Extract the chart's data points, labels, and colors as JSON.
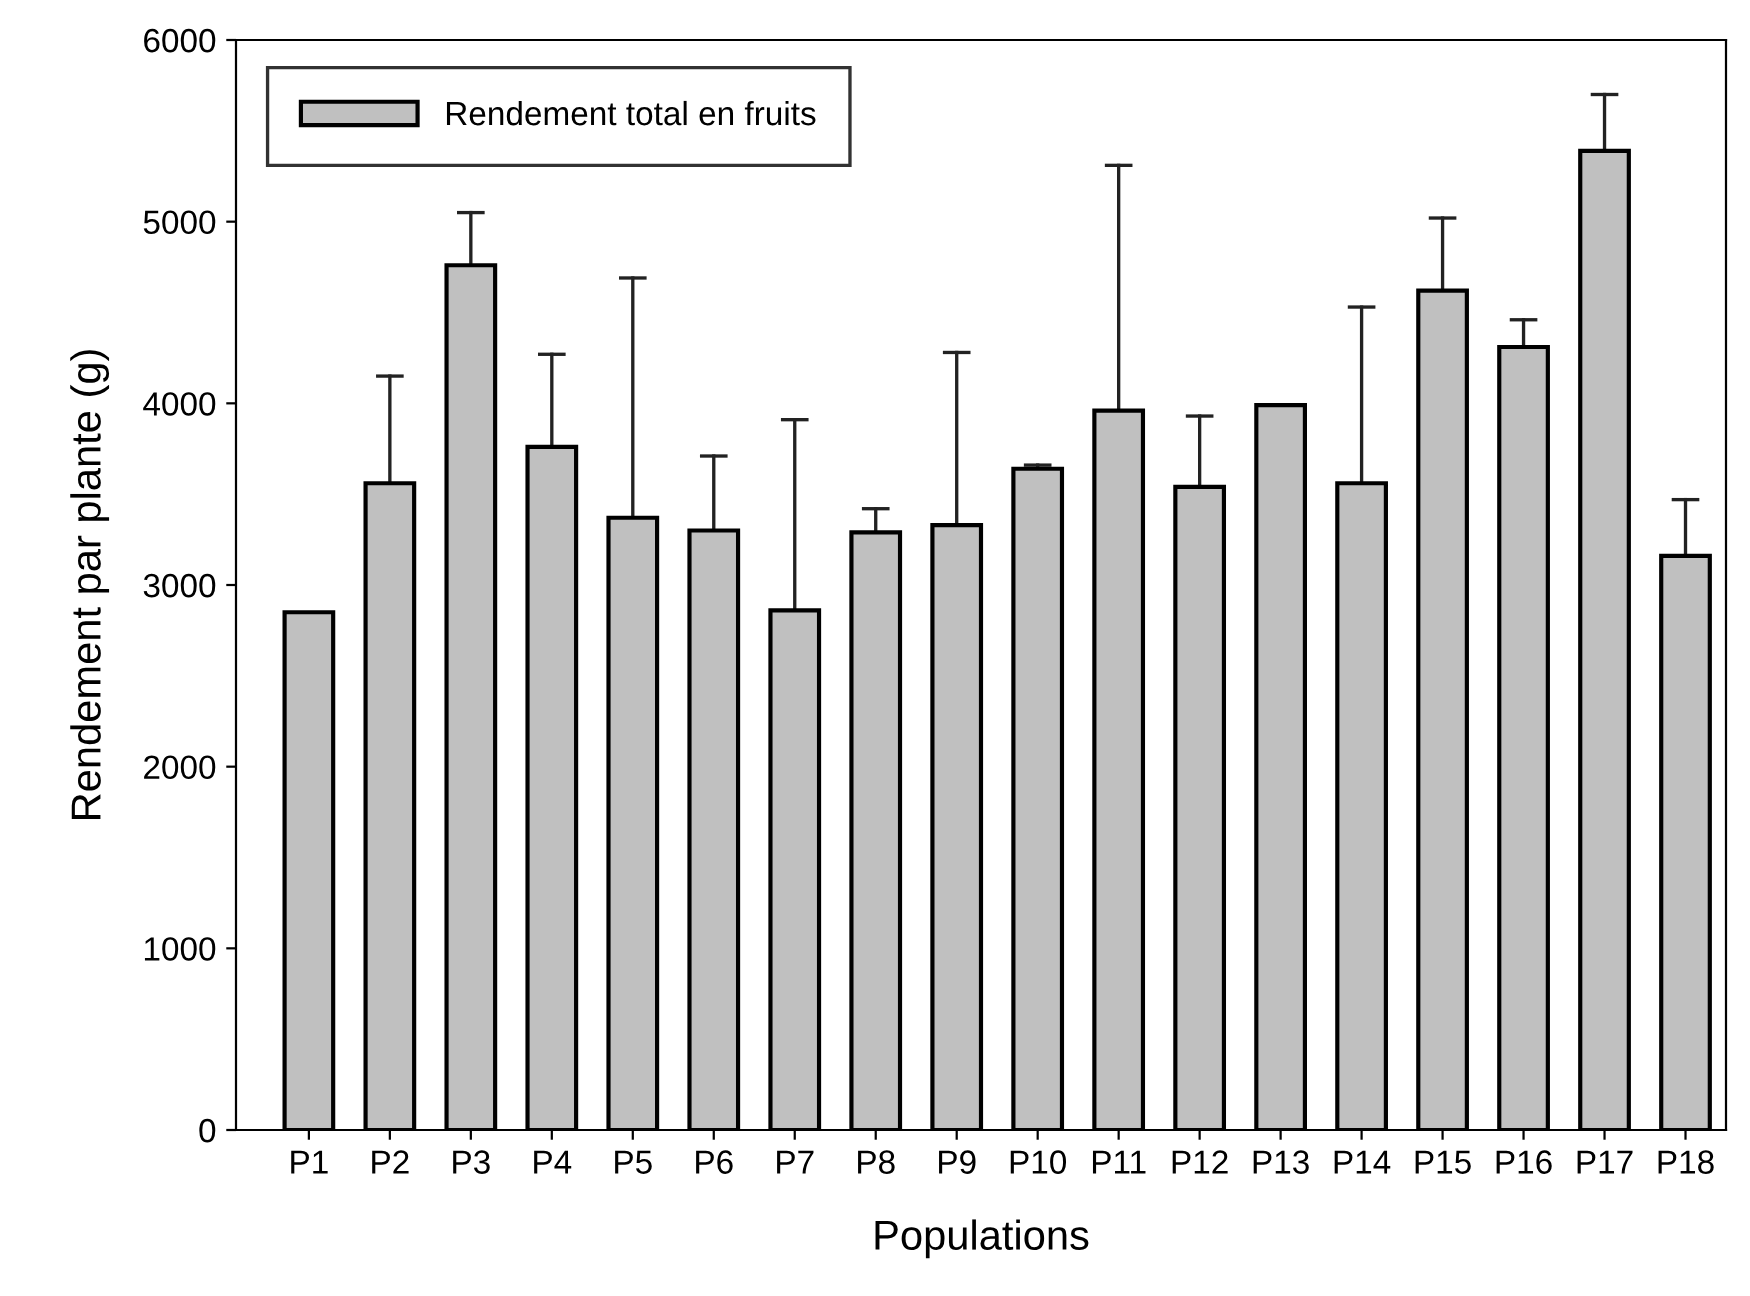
{
  "chart_data": {
    "type": "bar",
    "xlabel": "Populations",
    "ylabel": "Rendement par plante (g)",
    "categories": [
      "P1",
      "P2",
      "P3",
      "P4",
      "P5",
      "P6",
      "P7",
      "P8",
      "P9",
      "P10",
      "P11",
      "P12",
      "P13",
      "P14",
      "P15",
      "P16",
      "P17",
      "P18"
    ],
    "series": [
      {
        "name": "Rendement total en fruits",
        "color": "#c0c0c0",
        "values": [
          2850,
          3560,
          4760,
          3760,
          3370,
          3300,
          2860,
          3290,
          3330,
          3640,
          3960,
          3540,
          3990,
          3560,
          4620,
          4310,
          5390,
          3160
        ],
        "errors": [
          null,
          [
            3560,
            4150
          ],
          [
            4760,
            5050
          ],
          [
            3760,
            4270
          ],
          [
            3370,
            4690
          ],
          [
            3300,
            3710
          ],
          [
            2860,
            3910
          ],
          [
            3290,
            3420
          ],
          [
            3330,
            4280
          ],
          [
            3640,
            3660
          ],
          [
            3960,
            5310
          ],
          [
            3540,
            3930
          ],
          null,
          [
            3560,
            4530
          ],
          [
            4620,
            5020
          ],
          [
            4310,
            4460
          ],
          [
            5390,
            5700
          ],
          [
            3160,
            3470
          ]
        ]
      }
    ],
    "ylim": [
      0,
      6000
    ],
    "yticks": [
      0,
      1000,
      2000,
      3000,
      4000,
      5000,
      6000
    ],
    "grid": false,
    "legend": "top left"
  }
}
